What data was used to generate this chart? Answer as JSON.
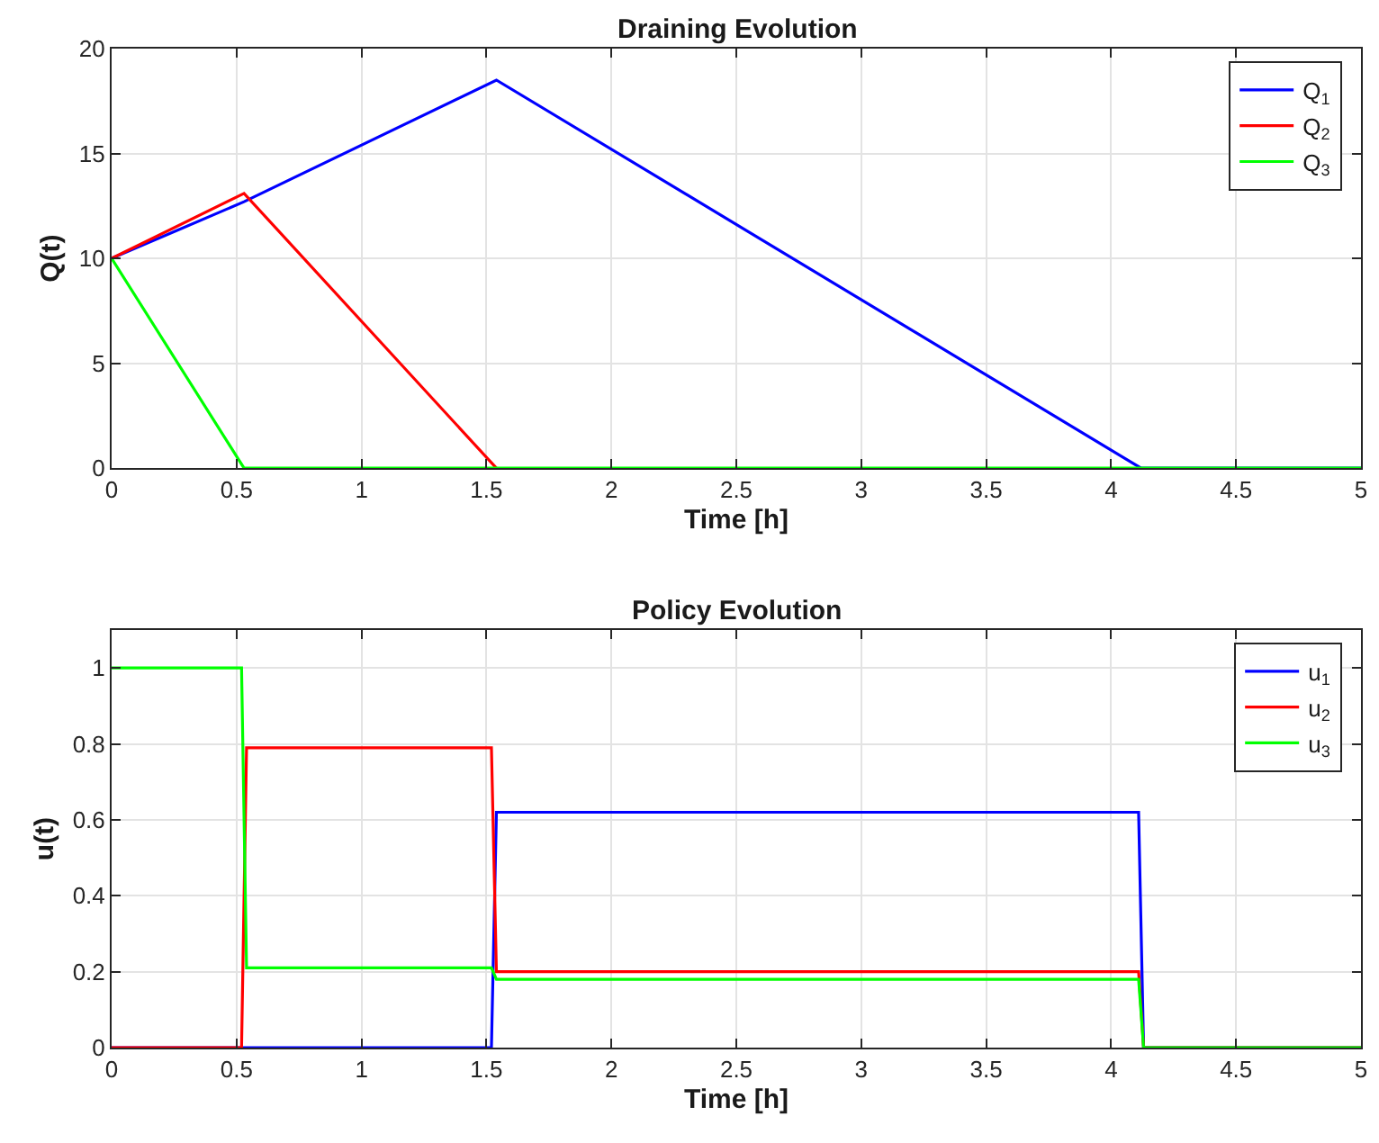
{
  "chart_data": [
    {
      "type": "line",
      "title": "Draining Evolution",
      "xlabel": "Time [h]",
      "ylabel": "Q(t)",
      "xlim": [
        0,
        5
      ],
      "xticks": [
        0,
        0.5,
        1,
        1.5,
        2,
        2.5,
        3,
        3.5,
        4,
        4.5,
        5
      ],
      "ylim": [
        0,
        20
      ],
      "yticks": [
        0,
        5,
        10,
        15,
        20
      ],
      "grid": true,
      "legend": "top right",
      "marker": "none",
      "line_style": "solid",
      "series": [
        {
          "name": "Q$_{1}$",
          "color": "#0000ff",
          "x": [
            0,
            0.53,
            1.54,
            4.12,
            5
          ],
          "values": [
            10,
            12.7,
            18.5,
            0,
            0
          ]
        },
        {
          "name": "Q$_{2}$",
          "color": "#ff0000",
          "x": [
            0,
            0.53,
            1.54
          ],
          "values": [
            10,
            13.1,
            0
          ]
        },
        {
          "name": "Q$_{3}$",
          "color": "#00ff00",
          "x": [
            0,
            0.53,
            5
          ],
          "values": [
            10,
            0,
            0
          ]
        }
      ]
    },
    {
      "type": "line",
      "title": "Policy Evolution",
      "xlabel": "Time [h]",
      "ylabel": "u(t)",
      "xlim": [
        0,
        5
      ],
      "xticks": [
        0,
        0.5,
        1,
        1.5,
        2,
        2.5,
        3,
        3.5,
        4,
        4.5,
        5
      ],
      "ylim": [
        0,
        1.1
      ],
      "yticks": [
        0,
        0.2,
        0.4,
        0.6,
        0.8,
        1
      ],
      "grid": true,
      "legend": "top right",
      "marker": "none",
      "line_style": "solid",
      "series": [
        {
          "name": "u$_{1}$",
          "color": "#0000ff",
          "x": [
            0,
            1.52,
            1.54,
            4.11,
            4.13,
            5
          ],
          "values": [
            0,
            0,
            0.62,
            0.62,
            0,
            0
          ]
        },
        {
          "name": "u$_{2}$",
          "color": "#ff0000",
          "x": [
            0,
            0.52,
            0.54,
            1.52,
            1.54,
            4.11,
            4.13,
            5
          ],
          "values": [
            0,
            0,
            0.79,
            0.79,
            0.2,
            0.2,
            0,
            0
          ]
        },
        {
          "name": "u$_{3}$",
          "color": "#00ff00",
          "x": [
            0,
            0.52,
            0.54,
            1.52,
            1.54,
            4.11,
            4.13,
            5
          ],
          "values": [
            1,
            1,
            0.21,
            0.21,
            0.18,
            0.18,
            0,
            0
          ]
        }
      ]
    }
  ]
}
